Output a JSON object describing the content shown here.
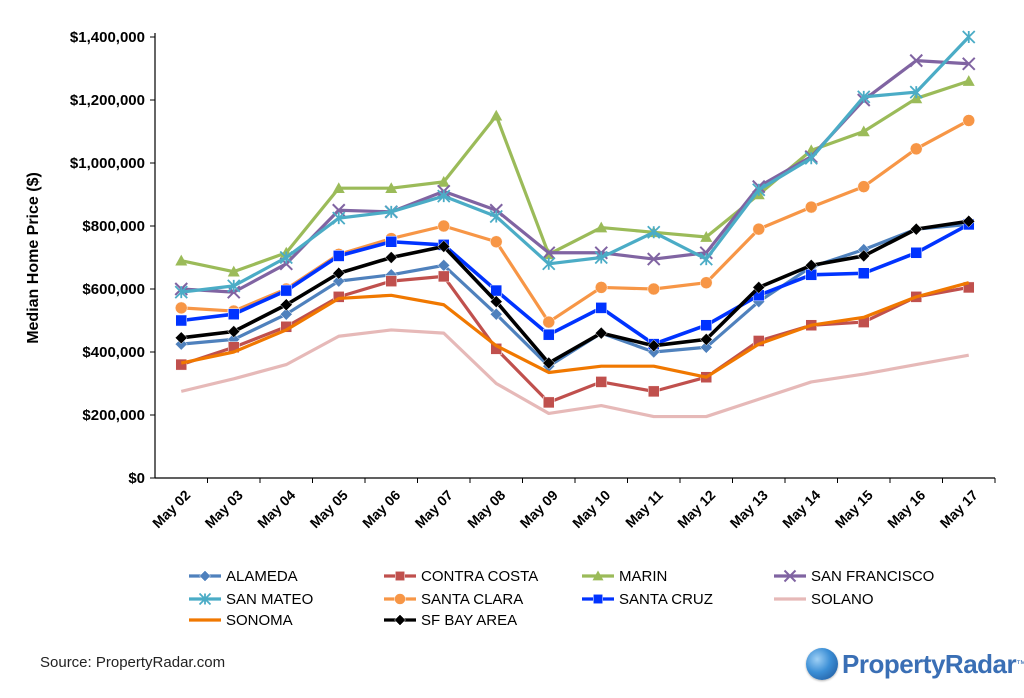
{
  "chart_data": {
    "type": "line",
    "title": "",
    "xlabel": "",
    "ylabel": "Median Home Price ($)",
    "ylim": [
      0,
      1400000
    ],
    "ytick_labels": [
      "$0",
      "$200,000",
      "$400,000",
      "$600,000",
      "$800,000",
      "$1,000,000",
      "$1,200,000",
      "$1,400,000"
    ],
    "categories": [
      "May 02",
      "May 03",
      "May 04",
      "May 05",
      "May 06",
      "May 07",
      "May 08",
      "May 09",
      "May 10",
      "May 11",
      "May 12",
      "May 13",
      "May 14",
      "May 15",
      "May 16",
      "May 17"
    ],
    "legend_position": "bottom",
    "series": [
      {
        "name": "ALAMEDA",
        "color": "#4f81bd",
        "marker": "diamond",
        "values": [
          425000,
          440000,
          520000,
          625000,
          645000,
          675000,
          520000,
          355000,
          460000,
          400000,
          415000,
          560000,
          670000,
          725000,
          790000,
          805000
        ]
      },
      {
        "name": "CONTRA COSTA",
        "color": "#c0504d",
        "marker": "square",
        "values": [
          360000,
          415000,
          480000,
          575000,
          625000,
          640000,
          410000,
          240000,
          305000,
          275000,
          320000,
          435000,
          485000,
          495000,
          575000,
          605000
        ]
      },
      {
        "name": "MARIN",
        "color": "#9bbb59",
        "marker": "triangle",
        "values": [
          690000,
          655000,
          715000,
          920000,
          920000,
          940000,
          1150000,
          710000,
          795000,
          780000,
          765000,
          900000,
          1040000,
          1100000,
          1205000,
          1260000
        ]
      },
      {
        "name": "SAN FRANCISCO",
        "color": "#8064a2",
        "marker": "x",
        "values": [
          600000,
          590000,
          680000,
          850000,
          845000,
          910000,
          850000,
          715000,
          715000,
          695000,
          715000,
          925000,
          1020000,
          1200000,
          1325000,
          1315000
        ]
      },
      {
        "name": "SAN MATEO",
        "color": "#4bacc6",
        "marker": "star",
        "values": [
          590000,
          610000,
          700000,
          825000,
          845000,
          895000,
          830000,
          680000,
          700000,
          780000,
          695000,
          915000,
          1015000,
          1210000,
          1225000,
          1400000
        ]
      },
      {
        "name": "SANTA CLARA",
        "color": "#f79646",
        "marker": "circle",
        "values": [
          540000,
          530000,
          600000,
          710000,
          760000,
          800000,
          750000,
          495000,
          605000,
          600000,
          620000,
          790000,
          860000,
          925000,
          1045000,
          1135000
        ]
      },
      {
        "name": "SANTA CRUZ",
        "color": "#0033ff",
        "marker": "square",
        "values": [
          500000,
          520000,
          595000,
          705000,
          750000,
          740000,
          595000,
          455000,
          540000,
          425000,
          485000,
          580000,
          645000,
          650000,
          715000,
          805000
        ]
      },
      {
        "name": "SOLANO",
        "color": "#e6b9b8",
        "marker": "dash",
        "values": [
          275000,
          315000,
          360000,
          450000,
          470000,
          460000,
          300000,
          205000,
          230000,
          195000,
          195000,
          250000,
          305000,
          330000,
          360000,
          390000
        ]
      },
      {
        "name": "SONOMA",
        "color": "#f07800",
        "marker": "dash",
        "values": [
          365000,
          400000,
          470000,
          570000,
          580000,
          550000,
          420000,
          335000,
          355000,
          355000,
          320000,
          425000,
          485000,
          510000,
          575000,
          620000
        ]
      },
      {
        "name": "SF BAY AREA",
        "color": "#000000",
        "marker": "diamond",
        "values": [
          445000,
          465000,
          550000,
          650000,
          700000,
          735000,
          560000,
          365000,
          460000,
          420000,
          440000,
          605000,
          675000,
          705000,
          790000,
          815000
        ]
      }
    ]
  },
  "source": "Source: PropertyRadar.com",
  "brand": {
    "name": "PropertyRadar",
    "mark": "™"
  }
}
